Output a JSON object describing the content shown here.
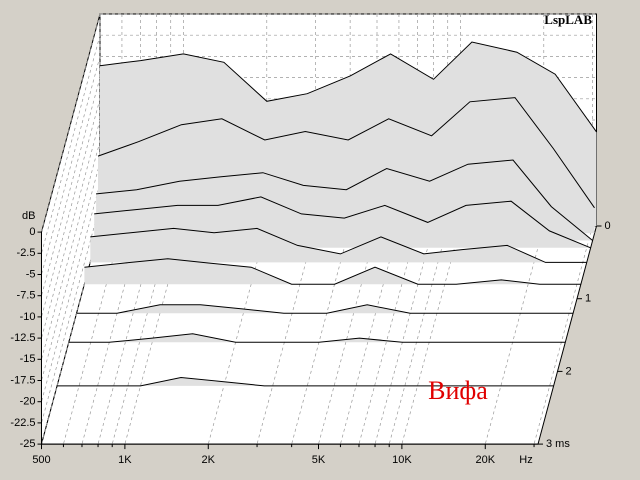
{
  "chart_data": {
    "type": "waterfall",
    "watermark": "LspLAB",
    "annotation": "Вифа",
    "y_label": "dB",
    "x_label": "Hz",
    "xscale": "log",
    "xlim": [
      500,
      31000
    ],
    "xticks": [
      {
        "value": 500,
        "label": "500"
      },
      {
        "value": 1000,
        "label": "1K"
      },
      {
        "value": 2000,
        "label": "2K"
      },
      {
        "value": 5000,
        "label": "5K"
      },
      {
        "value": 10000,
        "label": "10K"
      },
      {
        "value": 20000,
        "label": "20K"
      }
    ],
    "xminor": [
      600,
      700,
      800,
      900,
      3000,
      4000,
      6000,
      7000,
      8000,
      9000,
      30000
    ],
    "ylim": [
      -25,
      0
    ],
    "yticks": [
      0,
      -2.5,
      -5,
      -7.5,
      -10,
      -12.5,
      -15,
      -17.5,
      -20,
      -22.5,
      -25
    ],
    "zlim": [
      0,
      3
    ],
    "zticks": [
      0,
      1,
      2,
      {
        "value": 3,
        "label": "3 ms"
      }
    ],
    "grid": true,
    "fill_color": "#e0e0e0",
    "line_color": "#000000",
    "frequencies": [
      500,
      700,
      1000,
      1400,
      2000,
      2800,
      4000,
      5600,
      8000,
      11000,
      16000,
      22000,
      31000
    ],
    "slices": [
      {
        "time": 0,
        "values": [
          -6.1,
          -5.5,
          -4.7,
          -5.7,
          -10.3,
          -9.4,
          -7.3,
          -4.7,
          -7.7,
          -3.3,
          -4.5,
          -7.1,
          -13.9
        ]
      },
      {
        "time": 0.1,
        "values": [
          -15.9,
          -14.2,
          -12.2,
          -11.5,
          -14,
          -13,
          -14,
          -11.5,
          -13.5,
          -9.5,
          -9,
          -15,
          -22
        ]
      },
      {
        "time": 0.2,
        "values": [
          -19.5,
          -19,
          -18,
          -17.5,
          -17,
          -18.5,
          -19,
          -16.5,
          -18,
          -16,
          -15.5,
          -21,
          -25
        ]
      },
      {
        "time": 0.3,
        "values": [
          -21,
          -20.5,
          -20,
          -20,
          -19,
          -21,
          -21.5,
          -20,
          -22,
          -20,
          -19.5,
          -23,
          -25
        ]
      },
      {
        "time": 0.5,
        "values": [
          -22,
          -21.5,
          -21,
          -21.5,
          -21,
          -23,
          -24,
          -22,
          -24,
          -23.5,
          -23,
          -25,
          -25
        ]
      },
      {
        "time": 0.8,
        "values": [
          -23,
          -22.5,
          -22,
          -22.5,
          -23,
          -25,
          -25,
          -23,
          -25,
          -25,
          -24.5,
          -25,
          -25
        ]
      },
      {
        "time": 1.2,
        "values": [
          -25,
          -25,
          -24,
          -24,
          -24.5,
          -25,
          -25,
          -24,
          -25,
          -25,
          -25,
          -25,
          -25
        ]
      },
      {
        "time": 1.6,
        "values": [
          -25,
          -25,
          -24.5,
          -24,
          -25,
          -25,
          -25,
          -24.5,
          -25,
          -25,
          -25,
          -25,
          -25
        ]
      },
      {
        "time": 2.2,
        "values": [
          -25,
          -25,
          -25,
          -24,
          -24.5,
          -25,
          -25,
          -25,
          -25,
          -25,
          -25,
          -25,
          -25
        ]
      }
    ]
  }
}
